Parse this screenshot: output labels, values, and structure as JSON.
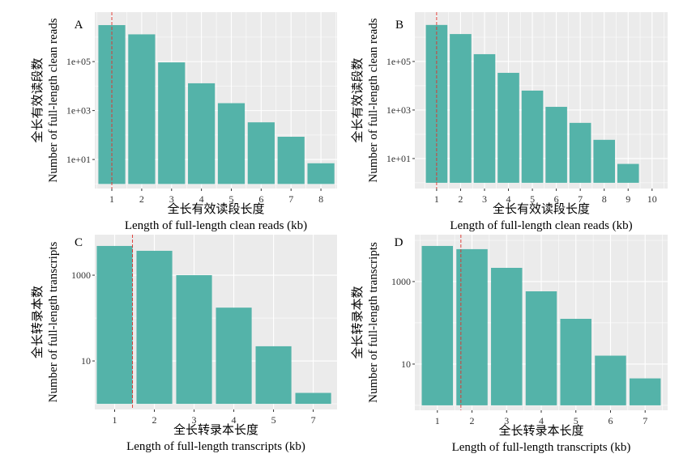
{
  "style": {
    "page_background": "#FFFFFF",
    "panel_background": "#EBEBEB",
    "grid_color": "#FFFFFF",
    "bar_color": "#54B3A9",
    "reference_line_color": "#E0312B",
    "text_color": "#000000",
    "tick_label_color": "#333333"
  },
  "chart_data": [
    {
      "panel": "A",
      "type": "bar",
      "x_scale": "continuous",
      "y_scale": "log10",
      "grid": true,
      "x": [
        1,
        2,
        3,
        4,
        5,
        6,
        7,
        8
      ],
      "values": [
        3100000,
        1300000,
        93000,
        13000,
        2000,
        330,
        85,
        7
      ],
      "xlim": [
        0.43,
        8.54
      ],
      "ylim": [
        0.65,
        10500000
      ],
      "xticks": [
        1,
        2,
        3,
        4,
        5,
        6,
        7,
        8
      ],
      "yticks": [
        10,
        1000,
        100000
      ],
      "ytick_labels": [
        "1e+01",
        "1e+03",
        "1e+05"
      ],
      "reference_line_x": 1,
      "ylabel_zh": "全长有效读段数",
      "ylabel_en": "Number of full-length clean reads",
      "xlabel_zh": "全长有效读段长度",
      "xlabel_en": "Length of full-length clean reads (kb)"
    },
    {
      "panel": "B",
      "type": "bar",
      "x_scale": "continuous",
      "y_scale": "log10",
      "grid": true,
      "x": [
        1,
        2,
        3,
        4,
        5,
        6,
        7,
        8,
        9
      ],
      "values": [
        3200000,
        1350000,
        200000,
        34000,
        6300,
        1350,
        295,
        59,
        6
      ],
      "xlim": [
        0.09,
        10.65
      ],
      "ylim": [
        0.58,
        10800000
      ],
      "xticks": [
        1,
        2,
        3,
        4,
        5,
        6,
        7,
        8,
        9,
        10
      ],
      "yticks": [
        10,
        1000,
        100000
      ],
      "ytick_labels": [
        "1e+01",
        "1e+03",
        "1e+05"
      ],
      "reference_line_x": 1,
      "ylabel_zh": "全长有效读段数",
      "ylabel_en": "Number of full-length clean reads",
      "xlabel_zh": "全长有效读段长度",
      "xlabel_en": "Length of full-length clean reads (kb)"
    },
    {
      "panel": "C",
      "type": "bar",
      "x_scale": "discrete",
      "y_scale": "log10",
      "grid": true,
      "x": [
        1,
        2,
        3,
        4,
        5,
        7
      ],
      "values": [
        4800,
        3700,
        1000,
        175,
        22,
        1.8
      ],
      "ylim": [
        0.74,
        8800
      ],
      "xticks": [
        1,
        2,
        3,
        4,
        5,
        7
      ],
      "yticks": [
        10,
        1000
      ],
      "ytick_labels": [
        "10",
        "1000"
      ],
      "reference_line_x": 1.45,
      "ylabel_zh": "全长转录本数",
      "ylabel_en": "Number of full-length transcripts",
      "xlabel_zh": "全长转录本长度",
      "xlabel_en": "Length of full-length transcripts (kb)"
    },
    {
      "panel": "D",
      "type": "bar",
      "x_scale": "continuous",
      "y_scale": "log10",
      "grid": true,
      "x": [
        1,
        2,
        3,
        4,
        5,
        6,
        7
      ],
      "values": [
        7300,
        6100,
        2150,
        580,
        125,
        16,
        4.5
      ],
      "xlim": [
        0.35,
        7.65
      ],
      "ylim": [
        0.76,
        13700
      ],
      "xticks": [
        1,
        2,
        3,
        4,
        5,
        6,
        7
      ],
      "yticks": [
        10,
        1000
      ],
      "ytick_labels": [
        "10",
        "1000"
      ],
      "reference_line_x": 1.68,
      "ylabel_zh": "全长转录本数",
      "ylabel_en": "Number of full-length transcripts",
      "xlabel_zh": "全长转录本长度",
      "xlabel_en": "Length of full-length transcripts (kb)"
    }
  ]
}
